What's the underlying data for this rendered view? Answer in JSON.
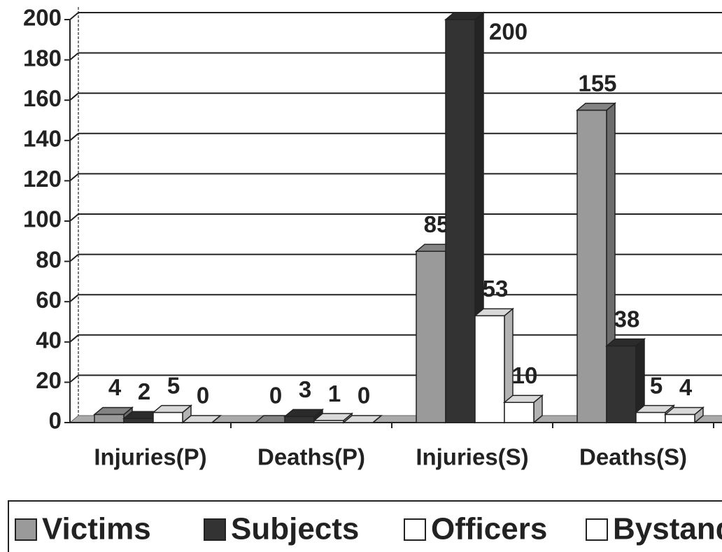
{
  "chart_data": {
    "type": "bar",
    "categories": [
      "Injuries(P)",
      "Deaths(P)",
      "Injuries(S)",
      "Deaths(S)"
    ],
    "series": [
      {
        "name": "Victims",
        "color": "#9a9a9a",
        "values": [
          4,
          0,
          85,
          155
        ]
      },
      {
        "name": "Subjects",
        "color": "#333333",
        "values": [
          2,
          3,
          200,
          38
        ]
      },
      {
        "name": "Officers",
        "color": "#ffffff",
        "values": [
          5,
          1,
          53,
          5
        ]
      },
      {
        "name": "Bystanders",
        "color": "#ffffff",
        "values": [
          0,
          0,
          10,
          4
        ]
      }
    ],
    "ylim": [
      0,
      200
    ],
    "yticks": [
      0,
      20,
      40,
      60,
      80,
      100,
      120,
      140,
      160,
      180,
      200
    ],
    "grid": true,
    "legend": "bottom"
  }
}
